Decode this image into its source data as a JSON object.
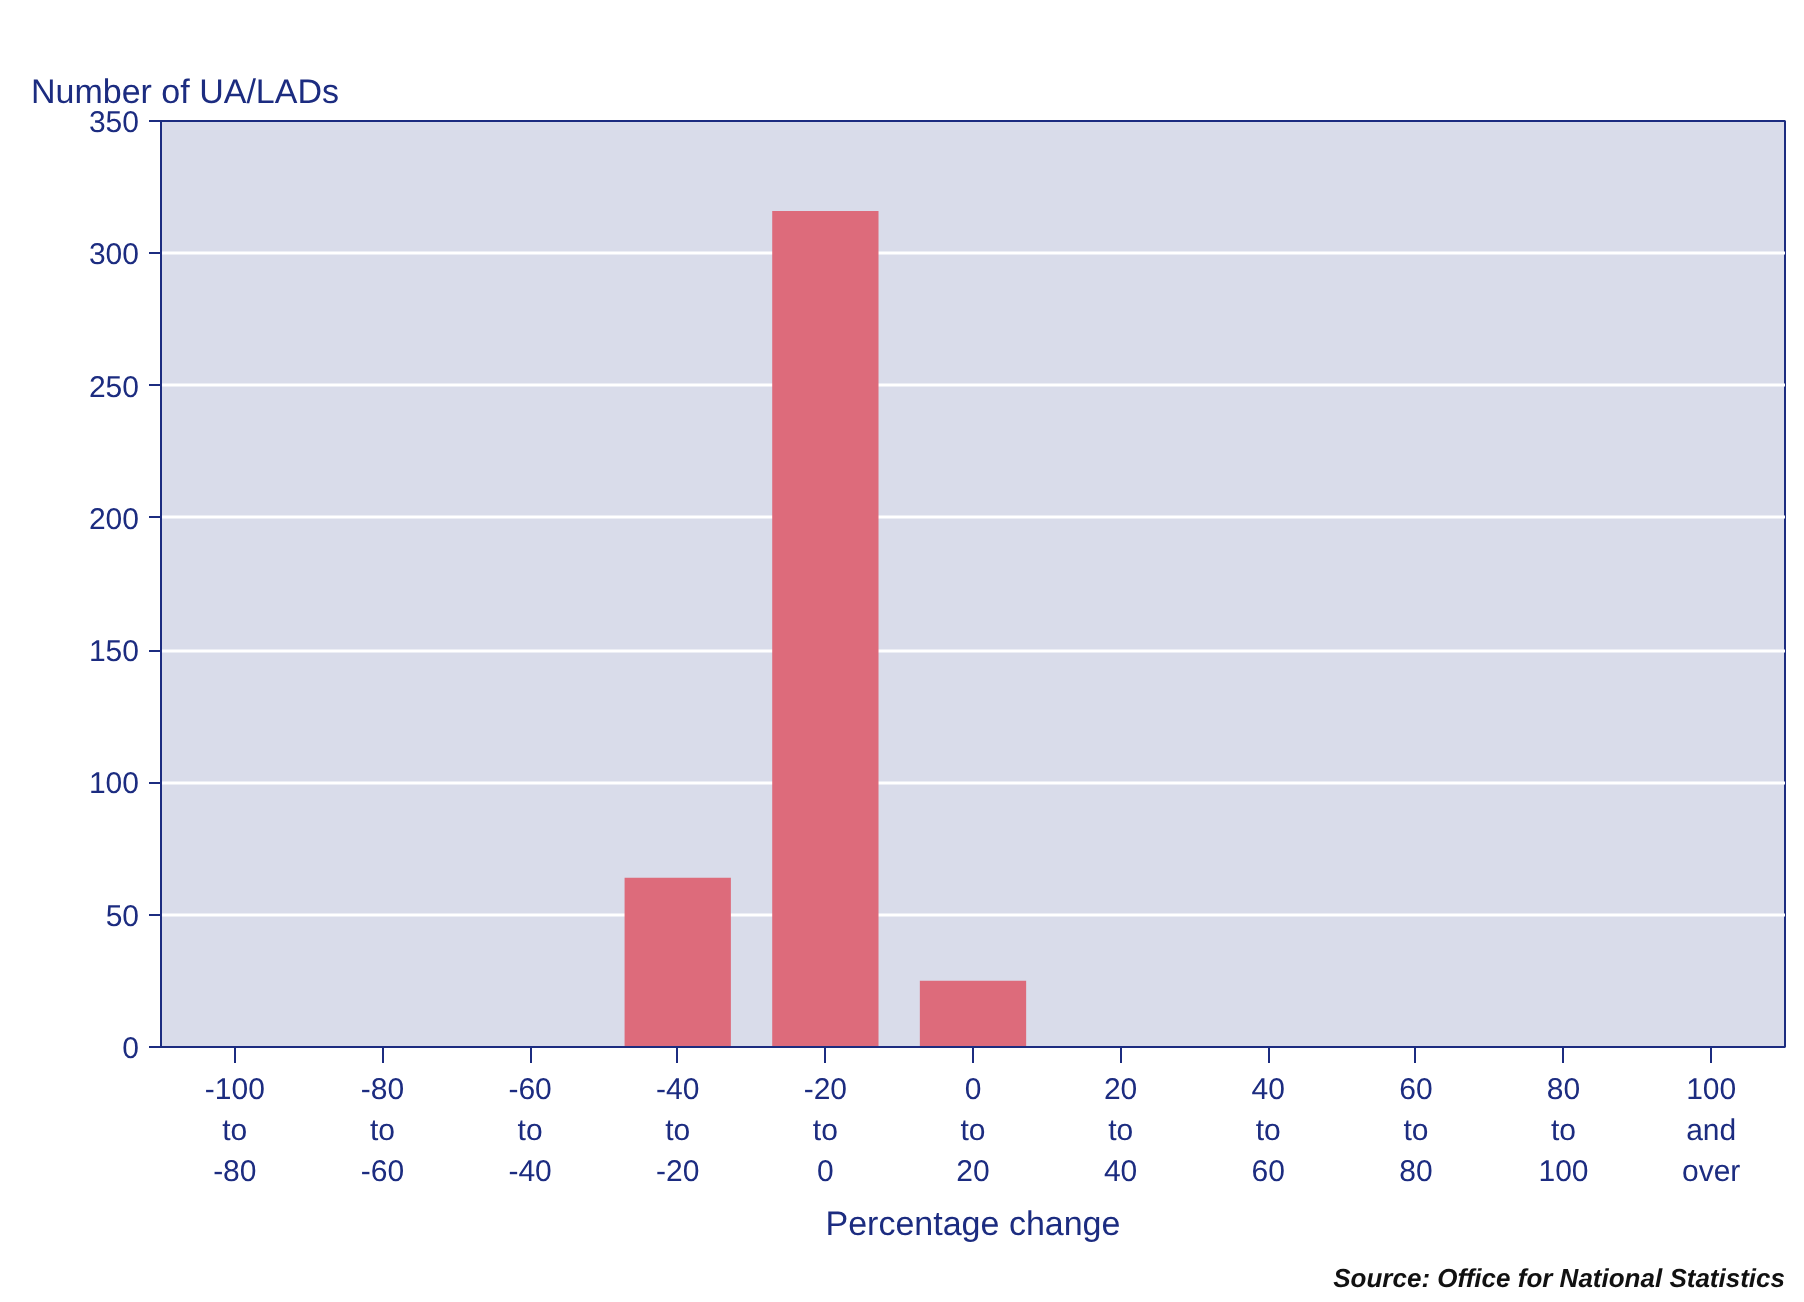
{
  "chart_data": {
    "type": "bar",
    "ylabel": "Number of UA/LADs",
    "xlabel": "Percentage change",
    "categories": [
      "-100 to -80",
      "-80 to -60",
      "-60 to -40",
      "-40 to -20",
      "-20 to 0",
      "0 to 20",
      "20 to 40",
      "40 to 60",
      "60 to 80",
      "80 to 100",
      "100 and over"
    ],
    "values": [
      0,
      0,
      0,
      64,
      316,
      25,
      0,
      0,
      0,
      0,
      0
    ],
    "color": "#dd6b7b",
    "ylim": [
      0,
      350
    ],
    "yticks": [
      0,
      50,
      100,
      150,
      200,
      250,
      300,
      350
    ],
    "grid": "y",
    "annotations": [
      "Source: Office for National Statistics"
    ]
  }
}
